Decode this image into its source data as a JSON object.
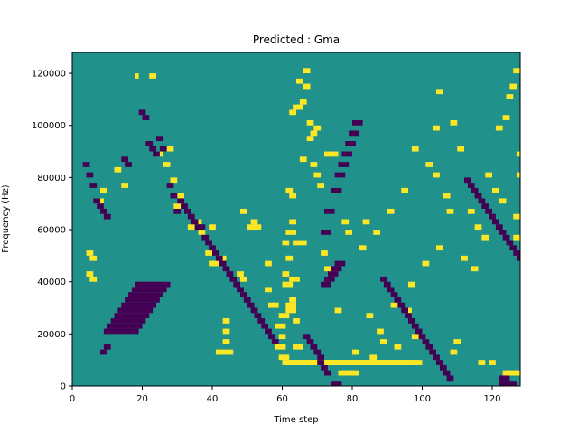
{
  "chart_data": {
    "type": "heatmap",
    "title": "Predicted : Gma",
    "xlabel": "Time step",
    "ylabel": "Frequency (Hz)",
    "xlim": [
      0,
      128
    ],
    "ylim": [
      0,
      128000
    ],
    "x_ticks": [
      0,
      20,
      40,
      60,
      80,
      100,
      120
    ],
    "y_ticks": [
      0,
      20000,
      40000,
      60000,
      80000,
      100000,
      120000
    ],
    "grid": false,
    "legend": "none",
    "colors": {
      "background_value": "#21918c",
      "high_value": "#fde725",
      "low_value": "#440154"
    },
    "yellow_cells": [
      [
        60,
        4,
        5,
        40
      ],
      [
        61,
        4,
        5,
        38
      ],
      [
        62,
        4,
        5,
        35
      ],
      [
        59,
        13,
        14,
        3
      ],
      [
        59,
        5,
        6,
        3
      ],
      [
        58,
        7,
        8,
        3
      ],
      [
        63,
        7,
        8,
        3
      ],
      [
        58,
        11,
        12,
        3
      ],
      [
        63,
        12,
        13,
        2
      ],
      [
        59,
        9,
        10,
        2
      ],
      [
        62,
        20,
        21,
        3
      ],
      [
        63,
        27,
        28,
        4
      ],
      [
        61,
        29,
        30,
        3
      ],
      [
        61,
        14,
        15,
        3
      ],
      [
        61,
        15,
        16,
        3
      ],
      [
        60,
        19,
        20,
        3
      ],
      [
        60,
        21,
        22,
        2
      ],
      [
        62,
        16,
        17,
        2
      ],
      [
        61,
        24,
        25,
        2
      ],
      [
        60,
        27,
        28,
        2
      ],
      [
        62,
        31,
        32,
        2
      ],
      [
        62,
        36,
        37,
        2
      ],
      [
        61,
        37,
        38,
        2
      ],
      [
        76,
        2,
        3,
        2
      ],
      [
        77,
        2,
        3,
        2
      ],
      [
        78,
        2,
        3,
        2
      ],
      [
        79,
        2,
        3,
        2
      ],
      [
        80,
        2,
        3,
        2
      ],
      [
        123,
        2,
        3,
        2
      ],
      [
        124,
        2,
        3,
        2
      ],
      [
        125,
        2,
        3,
        2
      ],
      [
        126,
        2,
        3,
        2
      ],
      [
        41,
        6,
        7,
        2
      ],
      [
        42,
        6,
        7,
        2
      ],
      [
        43,
        8,
        9,
        2
      ],
      [
        43,
        10,
        11,
        2
      ],
      [
        43,
        12,
        13,
        2
      ],
      [
        44,
        6,
        7,
        2
      ],
      [
        50,
        30,
        31,
        3
      ],
      [
        51,
        31,
        32,
        2
      ],
      [
        52,
        30,
        31,
        2
      ],
      [
        12,
        41,
        42,
        2
      ],
      [
        14,
        38,
        39,
        2
      ],
      [
        7,
        35,
        36,
        2
      ],
      [
        8,
        37,
        38,
        2
      ],
      [
        4,
        25,
        26,
        2
      ],
      [
        5,
        24,
        25,
        2
      ],
      [
        4,
        21,
        22,
        2
      ],
      [
        5,
        20,
        21,
        2
      ],
      [
        18,
        59,
        60,
        1
      ],
      [
        22,
        59,
        60,
        2
      ],
      [
        24,
        44,
        45,
        2
      ],
      [
        27,
        45,
        46,
        2
      ],
      [
        26,
        42,
        43,
        2
      ],
      [
        28,
        39,
        40,
        2
      ],
      [
        29,
        34,
        35,
        2
      ],
      [
        30,
        36,
        37,
        2
      ],
      [
        33,
        30,
        31,
        2
      ],
      [
        35,
        31,
        32,
        2
      ],
      [
        36,
        29,
        30,
        2
      ],
      [
        38,
        25,
        26,
        2
      ],
      [
        39,
        30,
        31,
        2
      ],
      [
        39,
        23,
        24,
        2
      ],
      [
        40,
        23,
        24,
        2
      ],
      [
        42,
        24,
        25,
        2
      ],
      [
        47,
        21,
        22,
        2
      ],
      [
        48,
        20,
        21,
        2
      ],
      [
        48,
        33,
        34,
        2
      ],
      [
        55,
        18,
        19,
        2
      ],
      [
        55,
        23,
        24,
        2
      ],
      [
        57,
        15,
        16,
        2
      ],
      [
        56,
        15,
        16,
        2
      ],
      [
        62,
        52,
        53,
        2
      ],
      [
        63,
        53,
        54,
        2
      ],
      [
        64,
        53,
        54,
        2
      ],
      [
        65,
        54,
        55,
        2
      ],
      [
        66,
        60,
        61,
        2
      ],
      [
        67,
        50,
        51,
        2
      ],
      [
        68,
        48,
        49,
        2
      ],
      [
        72,
        44,
        45,
        2
      ],
      [
        74,
        44,
        45,
        2
      ],
      [
        77,
        31,
        32,
        2
      ],
      [
        78,
        29,
        30,
        2
      ],
      [
        83,
        31,
        32,
        2
      ],
      [
        86,
        29,
        30,
        2
      ],
      [
        90,
        33,
        34,
        2
      ],
      [
        94,
        37,
        38,
        2
      ],
      [
        97,
        45,
        46,
        2
      ],
      [
        101,
        42,
        43,
        2
      ],
      [
        103,
        40,
        41,
        2
      ],
      [
        106,
        36,
        37,
        2
      ],
      [
        107,
        33,
        34,
        2
      ],
      [
        117,
        28,
        29,
        2
      ],
      [
        120,
        37,
        38,
        2
      ],
      [
        118,
        40,
        41,
        2
      ],
      [
        123,
        51,
        52,
        2
      ],
      [
        124,
        55,
        56,
        2
      ],
      [
        125,
        57,
        58,
        2
      ],
      [
        126,
        60,
        61,
        2
      ],
      [
        121,
        49,
        50,
        2
      ],
      [
        108,
        6,
        7,
        2
      ],
      [
        109,
        8,
        9,
        2
      ],
      [
        116,
        4,
        5,
        2
      ],
      [
        114,
        22,
        23,
        2
      ],
      [
        97,
        9,
        10,
        2
      ],
      [
        95,
        14,
        15,
        2
      ],
      [
        88,
        8,
        9,
        2
      ],
      [
        96,
        19,
        20,
        2
      ],
      [
        100,
        23,
        24,
        2
      ],
      [
        104,
        26,
        27,
        2
      ],
      [
        111,
        24,
        25,
        2
      ],
      [
        103,
        49,
        50,
        2
      ],
      [
        104,
        56,
        57,
        2
      ],
      [
        108,
        50,
        51,
        2
      ],
      [
        110,
        45,
        46,
        2
      ],
      [
        119,
        4,
        5,
        2
      ],
      [
        126,
        28,
        29,
        2
      ],
      [
        126,
        32,
        33,
        2
      ],
      [
        127,
        40,
        41,
        2
      ],
      [
        127,
        44,
        45,
        2
      ],
      [
        122,
        35,
        36,
        2
      ],
      [
        115,
        30,
        31,
        2
      ],
      [
        113,
        33,
        34,
        2
      ],
      [
        65,
        43,
        44,
        2
      ],
      [
        69,
        49,
        50,
        2
      ],
      [
        66,
        57,
        58,
        2
      ],
      [
        64,
        58,
        59,
        2
      ],
      [
        67,
        47,
        48,
        2
      ],
      [
        68,
        42,
        43,
        2
      ],
      [
        69,
        40,
        41,
        2
      ],
      [
        70,
        38,
        39,
        2
      ],
      [
        71,
        25,
        26,
        2
      ],
      [
        72,
        22,
        23,
        2
      ],
      [
        73,
        21,
        22,
        2
      ],
      [
        75,
        14,
        15,
        2
      ],
      [
        82,
        26,
        27,
        2
      ],
      [
        84,
        13,
        14,
        2
      ],
      [
        87,
        10,
        11,
        2
      ],
      [
        91,
        15,
        16,
        2
      ],
      [
        92,
        7,
        8,
        2
      ],
      [
        85,
        5,
        6,
        2
      ],
      [
        80,
        6,
        7,
        2
      ]
    ],
    "purple_cells": [
      [
        74,
        0,
        1,
        2
      ],
      [
        75,
        0,
        1,
        2
      ],
      [
        122,
        0,
        1,
        2
      ],
      [
        123,
        0,
        1,
        2
      ],
      [
        124,
        0,
        1,
        2
      ],
      [
        125,
        0,
        1,
        2
      ],
      [
        122,
        1,
        2,
        2
      ],
      [
        123,
        1,
        2,
        2
      ],
      [
        71,
        19,
        20,
        3
      ],
      [
        72,
        20,
        21,
        3
      ],
      [
        73,
        21,
        22,
        3
      ],
      [
        74,
        22,
        23,
        3
      ],
      [
        75,
        23,
        24,
        3
      ],
      [
        71,
        29,
        30,
        3
      ],
      [
        72,
        33,
        34,
        3
      ],
      [
        74,
        37,
        38,
        3
      ],
      [
        75,
        40,
        41,
        3
      ],
      [
        76,
        42,
        43,
        3
      ],
      [
        77,
        44,
        45,
        3
      ],
      [
        78,
        46,
        47,
        3
      ],
      [
        79,
        48,
        49,
        3
      ],
      [
        80,
        50,
        51,
        3
      ],
      [
        9,
        10,
        11,
        10
      ],
      [
        10,
        11,
        12,
        10
      ],
      [
        11,
        12,
        13,
        10
      ],
      [
        12,
        13,
        14,
        10
      ],
      [
        13,
        14,
        15,
        10
      ],
      [
        14,
        15,
        16,
        10
      ],
      [
        15,
        16,
        17,
        10
      ],
      [
        16,
        17,
        18,
        10
      ],
      [
        17,
        18,
        19,
        10
      ],
      [
        18,
        19,
        20,
        10
      ],
      [
        8,
        6,
        7,
        2
      ],
      [
        9,
        7,
        8,
        2
      ],
      [
        3,
        42,
        43,
        2
      ],
      [
        4,
        40,
        41,
        2
      ],
      [
        5,
        38,
        39,
        2
      ],
      [
        6,
        35,
        36,
        2
      ],
      [
        7,
        34,
        35,
        2
      ],
      [
        8,
        33,
        34,
        2
      ],
      [
        9,
        32,
        33,
        2
      ],
      [
        14,
        43,
        44,
        2
      ],
      [
        15,
        42,
        43,
        2
      ],
      [
        19,
        52,
        53,
        2
      ],
      [
        20,
        51,
        51,
        2
      ],
      [
        21,
        46,
        47,
        2
      ],
      [
        22,
        45,
        46,
        2
      ],
      [
        23,
        44,
        45,
        2
      ],
      [
        24,
        47,
        48,
        2
      ],
      [
        25,
        45,
        46,
        2
      ],
      [
        27,
        38,
        39,
        2
      ],
      [
        28,
        36,
        37,
        2
      ],
      [
        29,
        33,
        34,
        2
      ],
      [
        30,
        35,
        36,
        2
      ],
      [
        31,
        34,
        35,
        2
      ],
      [
        32,
        33,
        34,
        2
      ],
      [
        33,
        32,
        33,
        2
      ],
      [
        34,
        31,
        32,
        2
      ],
      [
        35,
        30,
        31,
        2
      ],
      [
        36,
        30,
        31,
        2
      ],
      [
        37,
        28,
        29,
        2
      ],
      [
        38,
        27,
        28,
        2
      ],
      [
        39,
        26,
        27,
        2
      ],
      [
        40,
        25,
        26,
        2
      ],
      [
        41,
        24,
        25,
        2
      ],
      [
        42,
        23,
        24,
        2
      ],
      [
        43,
        22,
        23,
        2
      ],
      [
        44,
        21,
        22,
        2
      ],
      [
        45,
        20,
        21,
        2
      ],
      [
        46,
        19,
        20,
        2
      ],
      [
        47,
        18,
        19,
        2
      ],
      [
        48,
        17,
        18,
        2
      ],
      [
        49,
        16,
        17,
        2
      ],
      [
        50,
        15,
        16,
        2
      ],
      [
        51,
        14,
        15,
        2
      ],
      [
        52,
        13,
        14,
        2
      ],
      [
        53,
        12,
        13,
        2
      ],
      [
        54,
        11,
        12,
        2
      ],
      [
        55,
        10,
        11,
        2
      ],
      [
        56,
        9,
        10,
        2
      ],
      [
        57,
        8,
        9,
        2
      ],
      [
        66,
        9,
        10,
        2
      ],
      [
        67,
        8,
        9,
        2
      ],
      [
        68,
        7,
        8,
        2
      ],
      [
        69,
        6,
        7,
        2
      ],
      [
        70,
        5,
        6,
        2
      ],
      [
        70,
        4,
        5,
        2
      ],
      [
        71,
        3,
        4,
        2
      ],
      [
        72,
        2,
        3,
        2
      ],
      [
        88,
        20,
        21,
        2
      ],
      [
        89,
        19,
        20,
        2
      ],
      [
        90,
        18,
        19,
        2
      ],
      [
        91,
        17,
        18,
        2
      ],
      [
        92,
        16,
        17,
        2
      ],
      [
        93,
        15,
        16,
        2
      ],
      [
        94,
        14,
        15,
        2
      ],
      [
        95,
        13,
        14,
        2
      ],
      [
        96,
        12,
        13,
        2
      ],
      [
        97,
        11,
        12,
        2
      ],
      [
        98,
        10,
        11,
        2
      ],
      [
        99,
        9,
        10,
        2
      ],
      [
        100,
        8,
        9,
        2
      ],
      [
        101,
        7,
        8,
        2
      ],
      [
        102,
        6,
        7,
        2
      ],
      [
        103,
        5,
        6,
        2
      ],
      [
        104,
        4,
        5,
        2
      ],
      [
        105,
        3,
        4,
        2
      ],
      [
        106,
        2,
        3,
        2
      ],
      [
        107,
        1,
        2,
        2
      ],
      [
        112,
        39,
        40,
        2
      ],
      [
        113,
        38,
        39,
        2
      ],
      [
        114,
        37,
        38,
        2
      ],
      [
        115,
        36,
        37,
        2
      ],
      [
        116,
        35,
        36,
        2
      ],
      [
        117,
        34,
        35,
        2
      ],
      [
        118,
        33,
        34,
        2
      ],
      [
        119,
        32,
        33,
        2
      ],
      [
        120,
        31,
        32,
        2
      ],
      [
        121,
        30,
        31,
        2
      ],
      [
        122,
        29,
        30,
        2
      ],
      [
        123,
        28,
        29,
        2
      ],
      [
        124,
        27,
        28,
        2
      ],
      [
        125,
        26,
        27,
        2
      ],
      [
        126,
        25,
        26,
        2
      ],
      [
        127,
        24,
        25,
        2
      ]
    ]
  }
}
